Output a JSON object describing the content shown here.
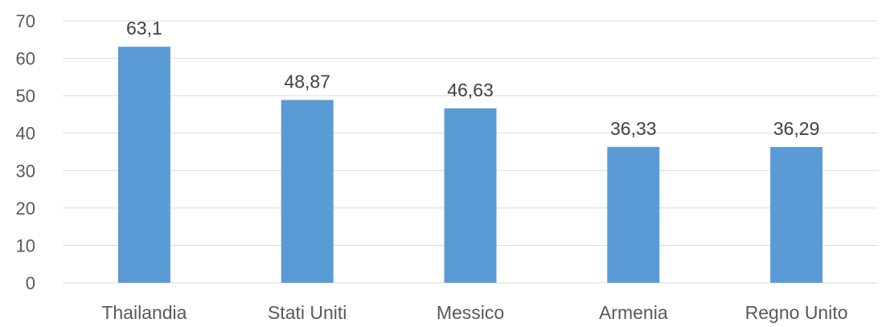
{
  "chart_data": {
    "type": "bar",
    "categories": [
      "Thailandia",
      "Stati Uniti",
      "Messico",
      "Armenia",
      "Regno Unito"
    ],
    "values": [
      63.1,
      48.87,
      46.63,
      36.33,
      36.29
    ],
    "data_labels": [
      "63,1",
      "48,87",
      "46,63",
      "36,33",
      "36,29"
    ],
    "title": "",
    "xlabel": "",
    "ylabel": "",
    "ylim": [
      0,
      70
    ],
    "yticks": [
      0,
      10,
      20,
      30,
      40,
      50,
      60,
      70
    ],
    "grid": true,
    "legend": "none",
    "bar_color": "#5b9bd5",
    "grid_color": "#d9d9d9"
  }
}
